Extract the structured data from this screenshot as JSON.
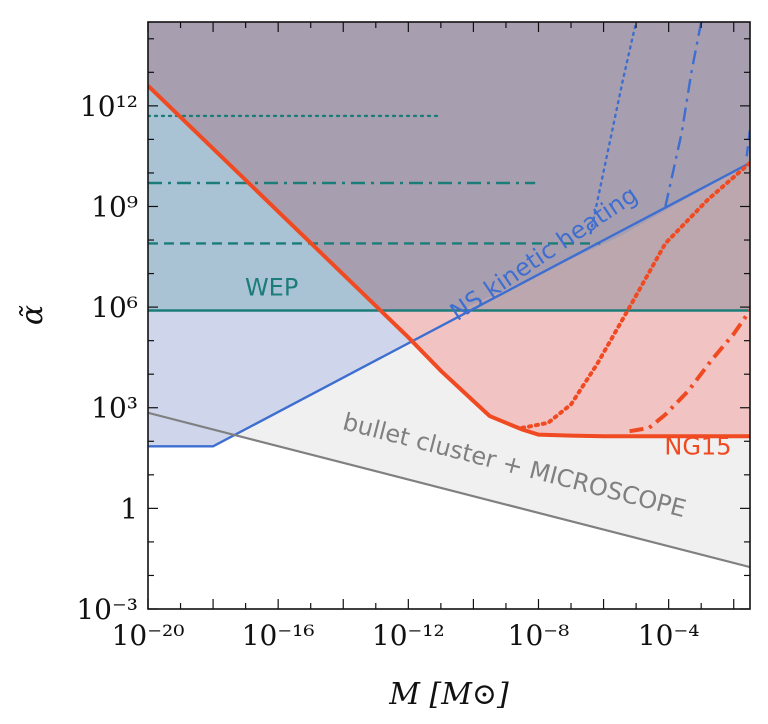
{
  "chart_data": {
    "type": "line",
    "xscale": "log",
    "yscale": "log",
    "xlim": [
      -20,
      -1.5
    ],
    "ylim": [
      -3,
      14.5
    ],
    "xlabel": "M [M⊙]",
    "ylabel": "α̃",
    "x_ticks": [
      {
        "exp": -20,
        "label": "10⁻²⁰"
      },
      {
        "exp": -16,
        "label": "10⁻¹⁶"
      },
      {
        "exp": -12,
        "label": "10⁻¹²"
      },
      {
        "exp": -8,
        "label": "10⁻⁸"
      },
      {
        "exp": -4,
        "label": "10⁻⁴"
      }
    ],
    "y_ticks": [
      {
        "exp": 12,
        "label": "10¹²"
      },
      {
        "exp": 9,
        "label": "10⁹"
      },
      {
        "exp": 6,
        "label": "10⁶"
      },
      {
        "exp": 3,
        "label": "10³"
      },
      {
        "exp": 0,
        "label": "1"
      },
      {
        "exp": -3,
        "label": "10⁻³"
      }
    ],
    "colors": {
      "purple_region": "#a79fb0",
      "blue_region": "#a9c3d4",
      "lightblue_region": "#cfd6ec",
      "pink_region": "#f2c3c3",
      "brown_region": "#bba7ad",
      "gray_region": "#f0f0f0",
      "ng15": "#f04a22",
      "ns": "#3e6ed0",
      "wep": "#1c7c7a",
      "bullet": "#808080"
    },
    "series": [
      {
        "name": "WEP (solid)",
        "style": "solid",
        "color": "wep",
        "points": [
          [
            -20,
            5.9
          ],
          [
            -1.5,
            5.9
          ]
        ]
      },
      {
        "name": "WEP (dashed)",
        "style": "dashed",
        "color": "wep",
        "points": [
          [
            -20,
            7.9
          ],
          [
            -6.1,
            7.9
          ]
        ]
      },
      {
        "name": "WEP (dash-dot)",
        "style": "dashdot",
        "color": "wep",
        "points": [
          [
            -20,
            9.7
          ],
          [
            -8.1,
            9.7
          ]
        ]
      },
      {
        "name": "WEP (dotted)",
        "style": "dotted",
        "color": "wep",
        "points": [
          [
            -20,
            11.7
          ],
          [
            -11,
            11.7
          ]
        ]
      },
      {
        "name": "NS kinetic heating",
        "style": "solid",
        "color": "ns",
        "points": [
          [
            -20,
            1.85
          ],
          [
            -18,
            1.85
          ],
          [
            -1.5,
            10.3
          ]
        ]
      },
      {
        "name": "NS kinetic heating (dotted)",
        "style": "dotted",
        "color": "ns",
        "points": [
          [
            -6.4,
            8.2
          ],
          [
            -5.9,
            10.5
          ],
          [
            -5.4,
            12.8
          ],
          [
            -5,
            14.5
          ]
        ]
      },
      {
        "name": "NS kinetic heating (dash-dot)",
        "style": "dashdot",
        "color": "ns",
        "points": [
          [
            -4.1,
            9
          ],
          [
            -3.6,
            11.2
          ],
          [
            -3.3,
            13
          ],
          [
            -3,
            14.5
          ]
        ]
      },
      {
        "name": "NS kinetic heating (dashed)",
        "style": "dashed",
        "color": "ns",
        "points": [
          [
            -1.6,
            10.5
          ],
          [
            -1.5,
            11.3
          ]
        ]
      },
      {
        "name": "NG15",
        "style": "solid",
        "color": "ng15",
        "points": [
          [
            -20,
            12.6
          ],
          [
            -12,
            5.1
          ],
          [
            -11,
            4.1
          ],
          [
            -10,
            3.2
          ],
          [
            -9.5,
            2.75
          ],
          [
            -9,
            2.55
          ],
          [
            -8.5,
            2.35
          ],
          [
            -8,
            2.2
          ],
          [
            -7,
            2.17
          ],
          [
            -6,
            2.15
          ],
          [
            -4,
            2.15
          ],
          [
            -1.5,
            2.15
          ]
        ]
      },
      {
        "name": "NG15 (dotted)",
        "style": "dotted",
        "color": "ng15",
        "points": [
          [
            -8.5,
            2.4
          ],
          [
            -7.7,
            2.55
          ],
          [
            -7,
            3.1
          ],
          [
            -6.2,
            4.3
          ],
          [
            -5.2,
            6
          ],
          [
            -4.1,
            7.9
          ],
          [
            -2.8,
            9.2
          ],
          [
            -1.5,
            10.3
          ]
        ]
      },
      {
        "name": "NG15 (dash-dot)",
        "style": "dashdot",
        "color": "ng15",
        "points": [
          [
            -5.2,
            2.3
          ],
          [
            -4.6,
            2.4
          ],
          [
            -4.1,
            2.8
          ],
          [
            -3.4,
            3.5
          ],
          [
            -2.7,
            4.4
          ],
          [
            -2,
            5.2
          ],
          [
            -1.5,
            5.9
          ]
        ]
      },
      {
        "name": "bullet cluster + MICROSCOPE",
        "style": "solid",
        "color": "bullet",
        "points": [
          [
            -20,
            2.85
          ],
          [
            -1.5,
            -1.75
          ]
        ]
      }
    ],
    "annotations": [
      {
        "text": "WEP",
        "color": "wep",
        "x": -16.2,
        "y": 6.35,
        "angle": 0
      },
      {
        "text": "NS kinetic heating",
        "color": "ns",
        "x": -7.7,
        "y": 7.4,
        "angle": -34
      },
      {
        "text": "NG15",
        "color": "ng15",
        "x": -3.1,
        "y": 1.6,
        "angle": 0
      },
      {
        "text": "bullet cluster + MICROSCOPE",
        "color": "bullet",
        "x": -8.8,
        "y": 1.05,
        "angle": 14.5
      }
    ]
  }
}
